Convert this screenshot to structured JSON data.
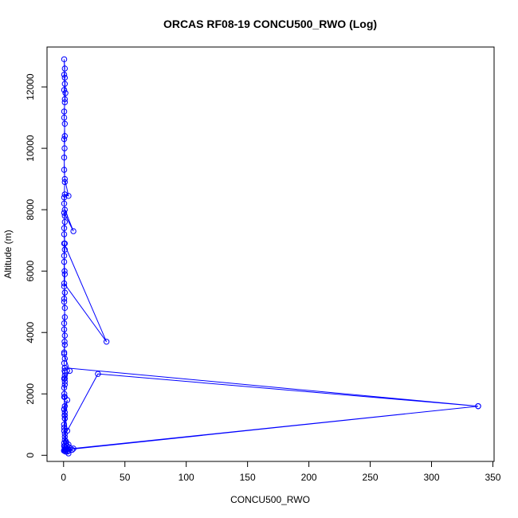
{
  "chart_data": {
    "type": "scatter",
    "title": "ORCAS RF08-19 CONCU500_RWO (Log)",
    "xlabel": "CONCU500_RWO",
    "ylabel": "Altitude (m)",
    "xlim": [
      -13.5,
      351
    ],
    "ylim": [
      -200,
      13300
    ],
    "x_ticks": [
      0,
      50,
      100,
      150,
      200,
      250,
      300,
      350
    ],
    "y_ticks": [
      0,
      2000,
      4000,
      6000,
      8000,
      10000,
      12000
    ],
    "grid": false,
    "legend": "none",
    "series": [
      {
        "color": "#0000ff",
        "marker": "open-circle",
        "connect": true,
        "points": [
          [
            0.3,
            150
          ],
          [
            1.0,
            160
          ],
          [
            2.0,
            200
          ],
          [
            3.0,
            300
          ],
          [
            5.0,
            250
          ],
          [
            7.0,
            180
          ],
          [
            4.0,
            140
          ],
          [
            2.0,
            170
          ],
          [
            1.0,
            200
          ],
          [
            0.5,
            400
          ],
          [
            1.0,
            700
          ],
          [
            0.4,
            1000
          ],
          [
            1.0,
            1200
          ],
          [
            0.5,
            1500
          ],
          [
            3.0,
            1800
          ],
          [
            1.0,
            1300
          ],
          [
            2.0,
            450
          ],
          [
            4.0,
            350
          ],
          [
            2.0,
            250
          ],
          [
            1.5,
            120
          ],
          [
            4.0,
            60
          ],
          [
            3.0,
            120
          ],
          [
            8.0,
            220
          ],
          [
            338.0,
            1600
          ],
          [
            2.0,
            180
          ],
          [
            4.0,
            200
          ],
          [
            1.0,
            250
          ],
          [
            0.5,
            300
          ],
          [
            2.0,
            400
          ],
          [
            1.0,
            600
          ],
          [
            0.5,
            900
          ],
          [
            0.8,
            1300
          ],
          [
            1.0,
            1600
          ],
          [
            0.6,
            2000
          ],
          [
            1.0,
            2400
          ],
          [
            1.2,
            2700
          ],
          [
            1.0,
            2850
          ],
          [
            338.0,
            1600
          ],
          [
            28.0,
            2650
          ],
          [
            3.0,
            800
          ],
          [
            1.0,
            1400
          ],
          [
            0.5,
            1900
          ],
          [
            1.0,
            2300
          ],
          [
            0.5,
            2500
          ],
          [
            1.0,
            2600
          ],
          [
            0.8,
            2750
          ],
          [
            1.0,
            2850
          ],
          [
            0.5,
            3000
          ],
          [
            1.0,
            3150
          ],
          [
            0.5,
            3350
          ],
          [
            0.8,
            3700
          ],
          [
            1.0,
            3900
          ],
          [
            0.5,
            4300
          ],
          [
            1.0,
            4800
          ],
          [
            0.5,
            5000
          ],
          [
            1.0,
            5300
          ],
          [
            0.5,
            5600
          ],
          [
            35.0,
            3700
          ],
          [
            0.5,
            6900
          ],
          [
            0.5,
            5500
          ],
          [
            0.8,
            6000
          ],
          [
            0.5,
            6500
          ],
          [
            1.0,
            6700
          ],
          [
            0.5,
            7200
          ],
          [
            1.0,
            7600
          ],
          [
            0.5,
            7900
          ],
          [
            8.0,
            7300
          ],
          [
            1.0,
            8000
          ],
          [
            0.5,
            8200
          ],
          [
            1.0,
            8500
          ],
          [
            4.0,
            8450
          ],
          [
            1.0,
            9000
          ],
          [
            0.5,
            9300
          ],
          [
            0.8,
            10000
          ],
          [
            0.5,
            10300
          ],
          [
            1.0,
            10800
          ],
          [
            0.5,
            11000
          ],
          [
            1.0,
            11600
          ],
          [
            0.5,
            11900
          ],
          [
            1.0,
            12100
          ],
          [
            0.5,
            12400
          ],
          [
            1.0,
            12600
          ],
          [
            0.5,
            12900
          ],
          [
            1.0,
            12300
          ],
          [
            1.5,
            11800
          ],
          [
            1.0,
            11500
          ],
          [
            0.5,
            11200
          ],
          [
            1.0,
            10400
          ],
          [
            0.5,
            9700
          ],
          [
            1.0,
            8900
          ],
          [
            0.5,
            8400
          ],
          [
            1.0,
            7800
          ],
          [
            0.5,
            7400
          ],
          [
            1.0,
            6900
          ],
          [
            0.5,
            6300
          ],
          [
            1.0,
            5900
          ],
          [
            0.5,
            5100
          ],
          [
            1.0,
            4500
          ],
          [
            0.5,
            4100
          ],
          [
            1.0,
            3600
          ],
          [
            0.5,
            3300
          ],
          [
            5.0,
            2750
          ],
          [
            1.0,
            2500
          ],
          [
            0.5,
            2200
          ],
          [
            1.0,
            1900
          ],
          [
            0.5,
            1500
          ],
          [
            1.0,
            1200
          ],
          [
            0.5,
            800
          ],
          [
            1.0,
            500
          ],
          [
            0.5,
            300
          ],
          [
            1.0,
            200
          ],
          [
            0.5,
            160
          ]
        ]
      }
    ]
  }
}
